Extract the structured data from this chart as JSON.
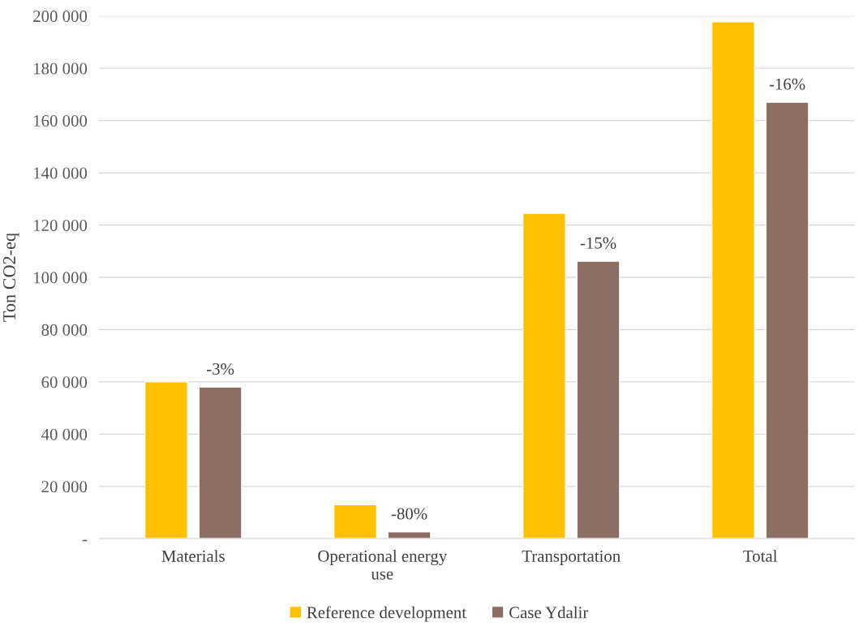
{
  "chart_data": {
    "type": "bar",
    "ylabel": "Ton CO2-eq",
    "categories": [
      "Materials",
      "Operational energy\nuse",
      "Transportation",
      "Total"
    ],
    "series": [
      {
        "name": "Reference development",
        "color": "#ffc000",
        "values": [
          60000,
          13000,
          124500,
          197800
        ]
      },
      {
        "name": "Case Ydalir",
        "color": "#8d6e63",
        "values": [
          58000,
          2600,
          106200,
          167000
        ]
      }
    ],
    "ylim": [
      0,
      200000
    ],
    "yticks": [
      {
        "value": 0,
        "label": "-"
      },
      {
        "value": 20000,
        "label": "20 000"
      },
      {
        "value": 40000,
        "label": "40 000"
      },
      {
        "value": 60000,
        "label": "60 000"
      },
      {
        "value": 80000,
        "label": "80 000"
      },
      {
        "value": 100000,
        "label": "100 000"
      },
      {
        "value": 120000,
        "label": "120 000"
      },
      {
        "value": 140000,
        "label": "140 000"
      },
      {
        "value": 160000,
        "label": "160 000"
      },
      {
        "value": 180000,
        "label": "180 000"
      },
      {
        "value": 200000,
        "label": "200 000"
      }
    ],
    "grid": "y",
    "legend": "bottom",
    "annotations": [
      "-3%",
      "-80%",
      "-15%",
      "-16%"
    ]
  }
}
